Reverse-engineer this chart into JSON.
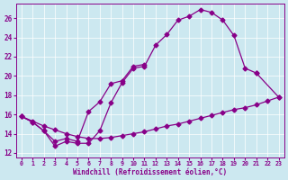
{
  "xlabel": "Windchill (Refroidissement éolien,°C)",
  "bg_color": "#cce8f0",
  "line_color": "#880088",
  "xlim": [
    -0.5,
    23.5
  ],
  "ylim": [
    11.5,
    27.5
  ],
  "xticks": [
    0,
    1,
    2,
    3,
    4,
    5,
    6,
    7,
    8,
    9,
    10,
    11,
    12,
    13,
    14,
    15,
    16,
    17,
    18,
    19,
    20,
    21,
    22,
    23
  ],
  "yticks": [
    12,
    14,
    16,
    18,
    20,
    22,
    24,
    26
  ],
  "curve1_x": [
    0,
    1,
    2,
    3,
    4,
    5,
    6,
    7,
    8,
    9,
    10,
    11,
    12,
    13,
    14,
    15,
    16,
    17,
    18,
    19,
    20,
    21
  ],
  "curve1_y": [
    15.8,
    15.2,
    14.3,
    12.7,
    13.2,
    13.0,
    13.0,
    14.3,
    17.2,
    19.3,
    20.8,
    21.0,
    23.2,
    24.3,
    25.8,
    26.2,
    26.9,
    26.6,
    25.8,
    24.2,
    20.8,
    20.3
  ],
  "curve2_x": [
    0,
    1,
    2,
    3,
    4,
    5,
    6,
    7,
    8,
    9,
    10,
    11
  ],
  "curve2_y": [
    15.8,
    15.2,
    14.3,
    13.2,
    13.5,
    13.2,
    16.3,
    17.3,
    19.2,
    19.5,
    21.0,
    21.2
  ],
  "curve3_x": [
    0,
    1,
    2,
    3,
    4,
    5,
    6,
    7,
    8,
    9,
    10,
    11,
    12,
    13,
    14,
    15,
    16,
    17,
    18,
    19,
    20,
    21,
    22,
    23
  ],
  "curve3_y": [
    15.8,
    15.3,
    14.8,
    14.4,
    14.0,
    13.7,
    13.5,
    13.5,
    13.6,
    13.8,
    14.0,
    14.2,
    14.5,
    14.8,
    15.0,
    15.3,
    15.6,
    15.9,
    16.2,
    16.5,
    16.7,
    17.0,
    17.4,
    17.8
  ],
  "curve4_x": [
    21,
    23
  ],
  "curve4_y": [
    20.3,
    17.8
  ],
  "marker": "D",
  "markersize": 2.5,
  "linewidth": 0.9
}
